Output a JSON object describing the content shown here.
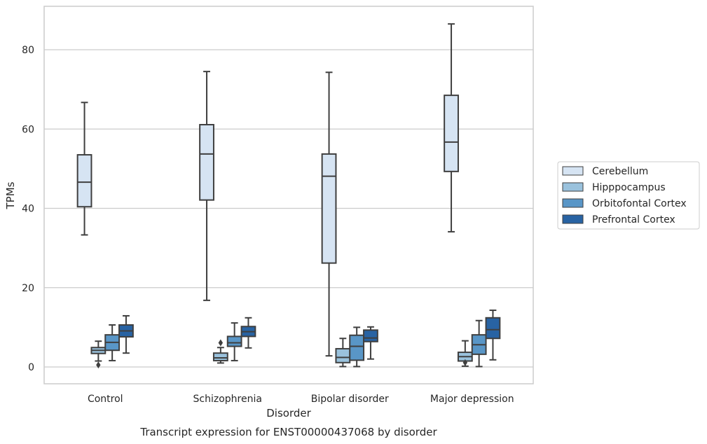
{
  "chart_data": {
    "type": "box",
    "xlabel": "Disorder",
    "ylabel": "TPMs",
    "caption": "Transcript expression for ENST00000437068 by disorder",
    "categories": [
      "Control",
      "Schizophrenia",
      "Bipolar disorder",
      "Major depression"
    ],
    "ylim": [
      -4,
      91
    ],
    "yticks": [
      0,
      20,
      40,
      60,
      80
    ],
    "grid": true,
    "legend_position": "right",
    "series": [
      {
        "name": "Cerebellum",
        "color": "#d6e4f3",
        "boxes": [
          {
            "whislo": 33.3,
            "q1": 40.4,
            "med": 46.6,
            "q3": 53.5,
            "whishi": 66.7,
            "fliers": []
          },
          {
            "whislo": 16.8,
            "q1": 42.1,
            "med": 53.7,
            "q3": 61.1,
            "whishi": 74.5,
            "fliers": []
          },
          {
            "whislo": 2.8,
            "q1": 26.2,
            "med": 48.1,
            "q3": 53.7,
            "whishi": 74.3,
            "fliers": []
          },
          {
            "whislo": 34.1,
            "q1": 49.3,
            "med": 56.7,
            "q3": 68.5,
            "whishi": 86.5,
            "fliers": []
          }
        ]
      },
      {
        "name": "Hipppocampus",
        "color": "#9ac2dd",
        "boxes": [
          {
            "whislo": 1.5,
            "q1": 3.4,
            "med": 4.2,
            "q3": 4.9,
            "whishi": 6.5,
            "fliers": [
              0.5
            ]
          },
          {
            "whislo": 1.0,
            "q1": 1.6,
            "med": 2.3,
            "q3": 3.5,
            "whishi": 4.9,
            "fliers": [
              6.1
            ]
          },
          {
            "whislo": 0.1,
            "q1": 1.1,
            "med": 2.4,
            "q3": 4.6,
            "whishi": 7.2,
            "fliers": []
          },
          {
            "whislo": 0.2,
            "q1": 1.5,
            "med": 2.6,
            "q3": 3.7,
            "whishi": 6.6,
            "fliers": [
              1.1
            ]
          }
        ]
      },
      {
        "name": "Orbitofontal Cortex",
        "color": "#5996c7",
        "boxes": [
          {
            "whislo": 1.6,
            "q1": 4.2,
            "med": 6.2,
            "q3": 8.1,
            "whishi": 10.6,
            "fliers": []
          },
          {
            "whislo": 1.6,
            "q1": 5.2,
            "med": 6.1,
            "q3": 7.7,
            "whishi": 11.1,
            "fliers": []
          },
          {
            "whislo": 0.1,
            "q1": 1.7,
            "med": 5.2,
            "q3": 8.0,
            "whishi": 10.0,
            "fliers": []
          },
          {
            "whislo": 0.1,
            "q1": 3.2,
            "med": 5.6,
            "q3": 8.1,
            "whishi": 11.7,
            "fliers": []
          }
        ]
      },
      {
        "name": "Prefrontal Cortex",
        "color": "#2863a3",
        "boxes": [
          {
            "whislo": 3.5,
            "q1": 7.6,
            "med": 9.1,
            "q3": 10.6,
            "whishi": 12.9,
            "fliers": []
          },
          {
            "whislo": 4.8,
            "q1": 7.7,
            "med": 8.9,
            "q3": 10.2,
            "whishi": 12.4,
            "fliers": []
          },
          {
            "whislo": 2.0,
            "q1": 6.4,
            "med": 7.3,
            "q3": 9.3,
            "whishi": 10.1,
            "fliers": []
          },
          {
            "whislo": 1.8,
            "q1": 7.2,
            "med": 9.4,
            "q3": 12.4,
            "whishi": 14.3,
            "fliers": []
          }
        ]
      }
    ]
  }
}
